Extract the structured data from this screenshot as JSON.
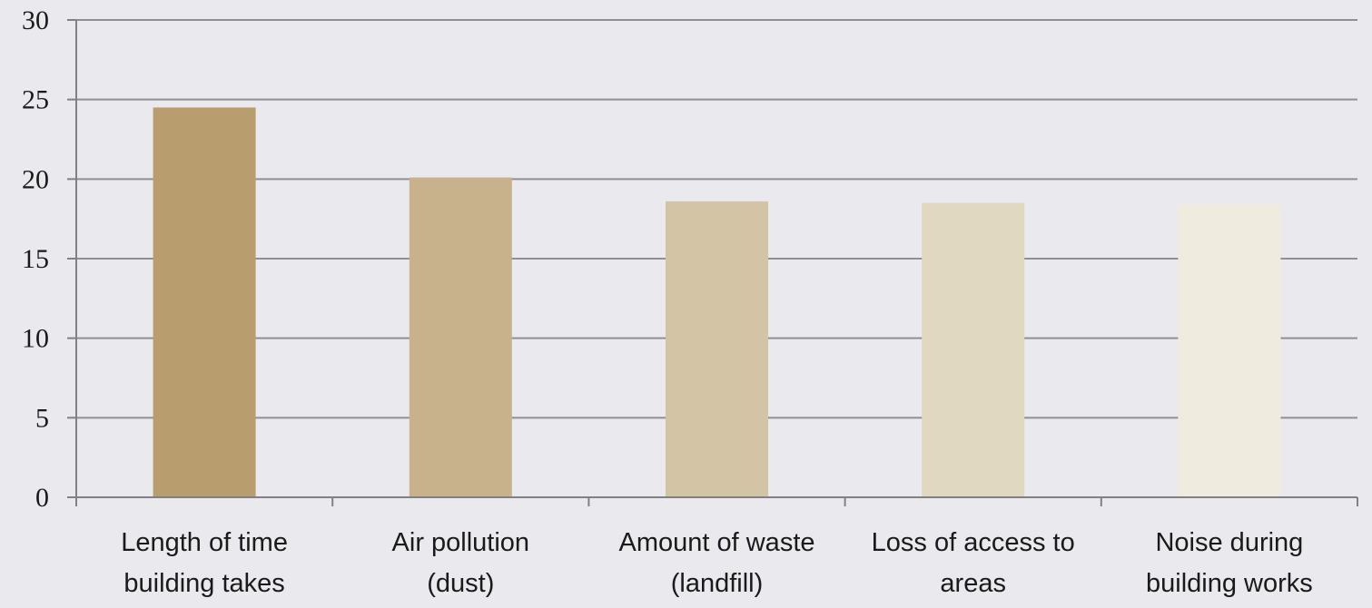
{
  "chart_data": {
    "type": "bar",
    "title": "",
    "xlabel": "",
    "ylabel": "",
    "ylim": [
      0,
      30
    ],
    "yticks": [
      0,
      5,
      10,
      15,
      20,
      25,
      30
    ],
    "grid": true,
    "legend": "none",
    "categories": [
      [
        "Length of time",
        "building takes"
      ],
      [
        "Air pollution",
        "(dust)"
      ],
      [
        "Amount of waste",
        "(landfill)"
      ],
      [
        "Loss of access to",
        "areas"
      ],
      [
        "Noise during",
        "building works"
      ]
    ],
    "values": [
      24.5,
      20.1,
      18.6,
      18.5,
      18.4
    ],
    "colors": [
      "#b89e6f",
      "#c7b28c",
      "#d3c4a6",
      "#e1d8c1",
      "#f0ebdf"
    ],
    "gridline_color": "#8f8f94",
    "axis_color": "#808085"
  }
}
